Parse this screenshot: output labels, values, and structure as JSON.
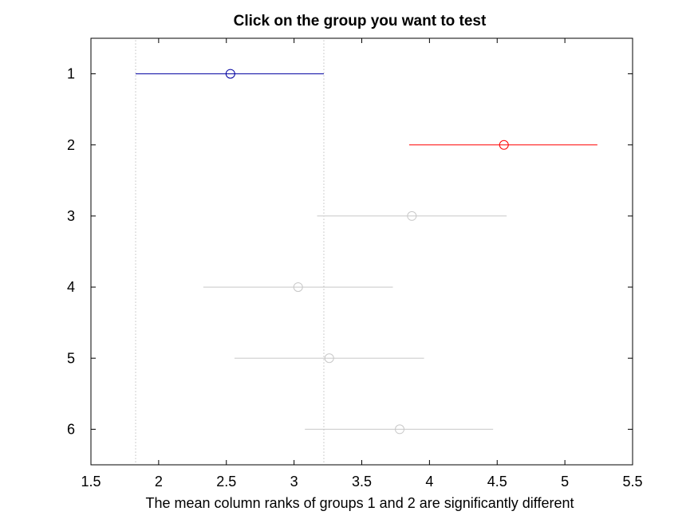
{
  "chart_data": {
    "type": "multiple-comparison",
    "title": "Click on the group you want to test",
    "xlabel": "The mean column ranks of groups 1 and 2 are significantly different",
    "ylabel": "",
    "xlim": [
      1.5,
      5.5
    ],
    "ylim": [
      0.5,
      6.5
    ],
    "yreversed": true,
    "x_ticks": [
      "1.5",
      "2",
      "2.5",
      "3",
      "3.5",
      "4",
      "4.5",
      "5",
      "5.5"
    ],
    "y_ticks": [
      "1",
      "2",
      "3",
      "4",
      "5",
      "6"
    ],
    "grid": false,
    "reference_lines": [
      1.83,
      3.22
    ],
    "reference_color": "#a0a0a0",
    "groups": [
      {
        "group": "1",
        "mean": 2.53,
        "lower": 1.83,
        "upper": 3.22,
        "color": "#0000a0",
        "state": "selected"
      },
      {
        "group": "2",
        "mean": 4.55,
        "lower": 3.85,
        "upper": 5.24,
        "color": "#ff0000",
        "state": "significantly different"
      },
      {
        "group": "3",
        "mean": 3.87,
        "lower": 3.17,
        "upper": 4.57,
        "color": "#c8c8c8",
        "state": "not significant"
      },
      {
        "group": "4",
        "mean": 3.03,
        "lower": 2.33,
        "upper": 3.73,
        "color": "#c8c8c8",
        "state": "not significant"
      },
      {
        "group": "5",
        "mean": 3.26,
        "lower": 2.56,
        "upper": 3.96,
        "color": "#c8c8c8",
        "state": "not significant"
      },
      {
        "group": "6",
        "mean": 3.78,
        "lower": 3.08,
        "upper": 4.47,
        "color": "#c8c8c8",
        "state": "not significant"
      }
    ]
  }
}
